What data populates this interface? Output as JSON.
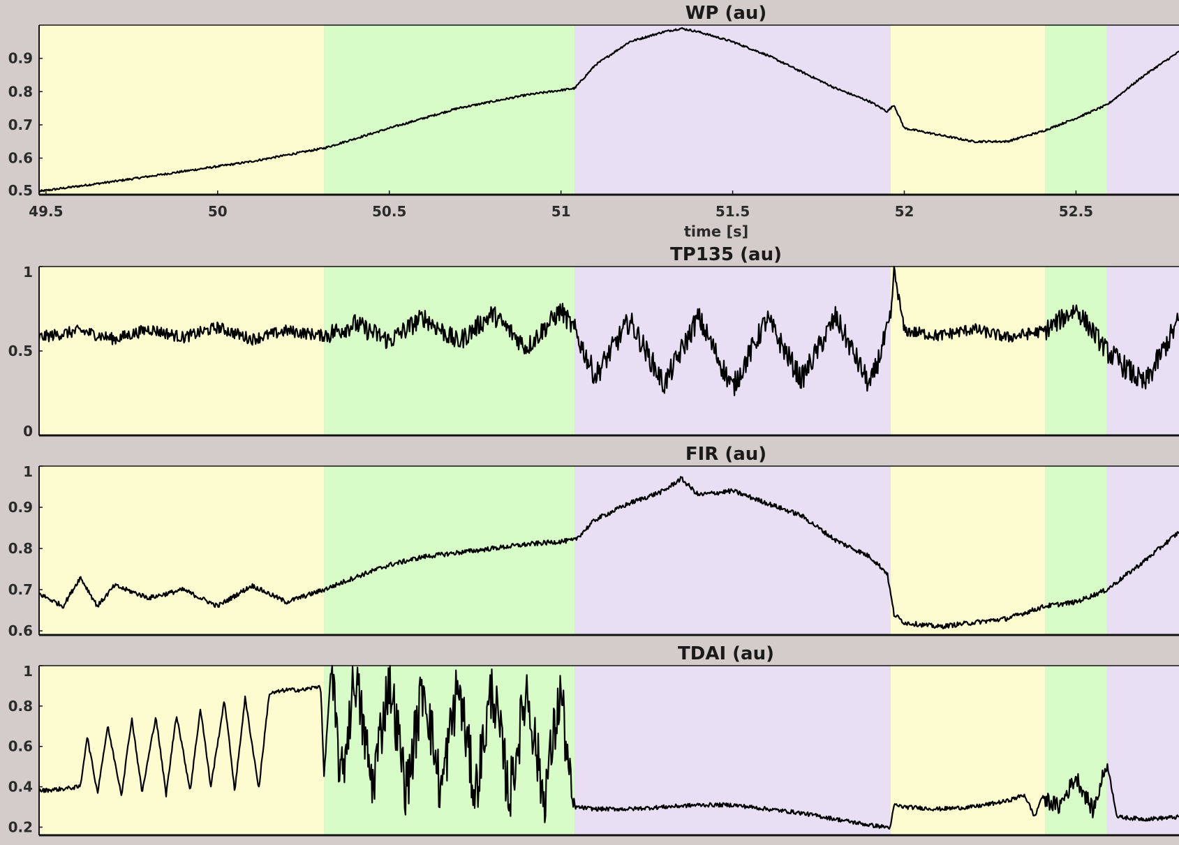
{
  "colors": {
    "background": "#d4cccb",
    "regime_colors": [
      "#fdfcd0",
      "#d8fcc8",
      "#e8dff4"
    ],
    "trace": "#000000"
  },
  "chart_data": [
    {
      "type": "line",
      "title": "WP (au)",
      "xlabel": "time [s]",
      "ylabel": "",
      "xlim": [
        49.48,
        52.8
      ],
      "ylim": [
        0.49,
        1.0
      ],
      "x_ticks": [
        "49.5",
        "50",
        "50.5",
        "51",
        "51.5",
        "52",
        "52.5"
      ],
      "y_ticks": [
        "0.5",
        "0.6",
        "0.7",
        "0.8",
        "0.9"
      ],
      "regions": [
        {
          "start": 49.48,
          "end": 50.31,
          "color": "#fdfcd0"
        },
        {
          "start": 50.31,
          "end": 51.04,
          "color": "#d8fcc8"
        },
        {
          "start": 51.04,
          "end": 51.96,
          "color": "#e8dff4"
        },
        {
          "start": 51.96,
          "end": 52.41,
          "color": "#fdfcd0"
        },
        {
          "start": 52.41,
          "end": 52.59,
          "color": "#d8fcc8"
        },
        {
          "start": 52.59,
          "end": 52.8,
          "color": "#e8dff4"
        }
      ],
      "series": [
        {
          "x": [
            49.48,
            49.7,
            49.9,
            50.1,
            50.31,
            50.5,
            50.7,
            50.9,
            51.04,
            51.1,
            51.2,
            51.3,
            51.35,
            51.4,
            51.5,
            51.6,
            51.7,
            51.8,
            51.9,
            51.95,
            51.97,
            52.0,
            52.1,
            52.2,
            52.3,
            52.4,
            52.5,
            52.59,
            52.7,
            52.8
          ],
          "y": [
            0.5,
            0.53,
            0.56,
            0.59,
            0.63,
            0.69,
            0.75,
            0.79,
            0.81,
            0.88,
            0.95,
            0.98,
            0.99,
            0.98,
            0.95,
            0.91,
            0.86,
            0.81,
            0.77,
            0.74,
            0.76,
            0.69,
            0.67,
            0.65,
            0.65,
            0.68,
            0.72,
            0.76,
            0.85,
            0.92
          ]
        }
      ]
    },
    {
      "type": "line",
      "title": "TP135 (au)",
      "xlabel": "",
      "ylabel": "",
      "xlim": [
        49.48,
        52.8
      ],
      "ylim": [
        0,
        1
      ],
      "y_ticks": [
        "0",
        "0.5",
        "1"
      ],
      "regions": [
        {
          "start": 49.48,
          "end": 50.31,
          "color": "#fdfcd0"
        },
        {
          "start": 50.31,
          "end": 51.04,
          "color": "#d8fcc8"
        },
        {
          "start": 51.04,
          "end": 51.96,
          "color": "#e8dff4"
        },
        {
          "start": 51.96,
          "end": 52.41,
          "color": "#fdfcd0"
        },
        {
          "start": 52.41,
          "end": 52.59,
          "color": "#d8fcc8"
        },
        {
          "start": 52.59,
          "end": 52.8,
          "color": "#e8dff4"
        }
      ],
      "series": [
        {
          "x": [
            49.48,
            49.6,
            49.7,
            49.8,
            49.9,
            50.0,
            50.1,
            50.2,
            50.31,
            50.4,
            50.5,
            50.6,
            50.7,
            50.8,
            50.9,
            51.0,
            51.04,
            51.1,
            51.2,
            51.3,
            51.4,
            51.5,
            51.6,
            51.7,
            51.8,
            51.9,
            51.96,
            51.97,
            52.0,
            52.1,
            52.2,
            52.3,
            52.41,
            52.5,
            52.59,
            52.7,
            52.8
          ],
          "y": [
            0.58,
            0.62,
            0.57,
            0.63,
            0.58,
            0.64,
            0.57,
            0.62,
            0.59,
            0.66,
            0.56,
            0.7,
            0.55,
            0.72,
            0.52,
            0.74,
            0.62,
            0.35,
            0.68,
            0.3,
            0.7,
            0.28,
            0.69,
            0.33,
            0.7,
            0.29,
            0.68,
            0.98,
            0.62,
            0.59,
            0.63,
            0.58,
            0.62,
            0.75,
            0.5,
            0.3,
            0.68
          ]
        }
      ]
    },
    {
      "type": "line",
      "title": "FIR (au)",
      "xlabel": "",
      "ylabel": "",
      "xlim": [
        49.48,
        52.8
      ],
      "ylim": [
        0.59,
        1.0
      ],
      "y_ticks": [
        "0.6",
        "0.7",
        "0.8",
        "0.9",
        "1"
      ],
      "regions": [
        {
          "start": 49.48,
          "end": 50.31,
          "color": "#fdfcd0"
        },
        {
          "start": 50.31,
          "end": 51.04,
          "color": "#d8fcc8"
        },
        {
          "start": 51.04,
          "end": 51.96,
          "color": "#e8dff4"
        },
        {
          "start": 51.96,
          "end": 52.41,
          "color": "#fdfcd0"
        },
        {
          "start": 52.41,
          "end": 52.59,
          "color": "#d8fcc8"
        },
        {
          "start": 52.59,
          "end": 52.8,
          "color": "#e8dff4"
        }
      ],
      "series": [
        {
          "x": [
            49.48,
            49.55,
            49.6,
            49.65,
            49.7,
            49.8,
            49.9,
            50.0,
            50.1,
            50.2,
            50.31,
            50.4,
            50.5,
            50.6,
            50.7,
            50.8,
            50.9,
            51.04,
            51.1,
            51.2,
            51.3,
            51.35,
            51.4,
            51.5,
            51.6,
            51.7,
            51.8,
            51.9,
            51.95,
            51.97,
            52.0,
            52.1,
            52.2,
            52.3,
            52.41,
            52.5,
            52.59,
            52.7,
            52.8
          ],
          "y": [
            0.69,
            0.66,
            0.73,
            0.66,
            0.71,
            0.68,
            0.7,
            0.66,
            0.71,
            0.67,
            0.7,
            0.73,
            0.76,
            0.78,
            0.79,
            0.8,
            0.81,
            0.82,
            0.87,
            0.91,
            0.94,
            0.97,
            0.93,
            0.94,
            0.91,
            0.88,
            0.82,
            0.78,
            0.74,
            0.64,
            0.62,
            0.61,
            0.62,
            0.63,
            0.66,
            0.67,
            0.7,
            0.77,
            0.84
          ]
        }
      ]
    },
    {
      "type": "line",
      "title": "TDAI (au)",
      "xlabel": "",
      "ylabel": "",
      "xlim": [
        49.48,
        52.8
      ],
      "ylim": [
        0.16,
        1.0
      ],
      "y_ticks": [
        "0.2",
        "0.4",
        "0.6",
        "0.8",
        "1"
      ],
      "regions": [
        {
          "start": 49.48,
          "end": 50.31,
          "color": "#fdfcd0"
        },
        {
          "start": 50.31,
          "end": 51.04,
          "color": "#d8fcc8"
        },
        {
          "start": 51.04,
          "end": 51.96,
          "color": "#e8dff4"
        },
        {
          "start": 51.96,
          "end": 52.41,
          "color": "#fdfcd0"
        },
        {
          "start": 52.41,
          "end": 52.59,
          "color": "#d8fcc8"
        },
        {
          "start": 52.59,
          "end": 52.8,
          "color": "#e8dff4"
        }
      ],
      "series": [
        {
          "x": [
            49.48,
            49.55,
            49.6,
            49.62,
            49.65,
            49.68,
            49.72,
            49.75,
            49.78,
            49.82,
            49.85,
            49.88,
            49.92,
            49.95,
            49.98,
            50.02,
            50.05,
            50.08,
            50.12,
            50.15,
            50.2,
            50.25,
            50.3,
            50.31,
            50.33,
            50.36,
            50.4,
            50.45,
            50.5,
            50.55,
            50.6,
            50.65,
            50.7,
            50.75,
            50.8,
            50.85,
            50.9,
            50.95,
            51.0,
            51.03,
            51.04,
            51.1,
            51.2,
            51.3,
            51.4,
            51.5,
            51.6,
            51.7,
            51.8,
            51.9,
            51.95,
            51.96,
            51.97,
            52.0,
            52.1,
            52.2,
            52.3,
            52.35,
            52.38,
            52.4,
            52.45,
            52.5,
            52.55,
            52.59,
            52.62,
            52.7,
            52.8
          ],
          "y": [
            0.38,
            0.39,
            0.4,
            0.65,
            0.37,
            0.7,
            0.36,
            0.74,
            0.37,
            0.75,
            0.36,
            0.76,
            0.38,
            0.79,
            0.4,
            0.83,
            0.38,
            0.84,
            0.39,
            0.86,
            0.88,
            0.88,
            0.9,
            0.45,
            0.98,
            0.42,
            0.96,
            0.4,
            0.94,
            0.38,
            0.92,
            0.37,
            0.91,
            0.36,
            0.9,
            0.35,
            0.89,
            0.34,
            0.88,
            0.33,
            0.3,
            0.29,
            0.29,
            0.3,
            0.31,
            0.31,
            0.29,
            0.27,
            0.24,
            0.21,
            0.2,
            0.2,
            0.31,
            0.3,
            0.29,
            0.3,
            0.33,
            0.36,
            0.25,
            0.35,
            0.3,
            0.45,
            0.28,
            0.52,
            0.25,
            0.24,
            0.25
          ]
        }
      ]
    }
  ]
}
